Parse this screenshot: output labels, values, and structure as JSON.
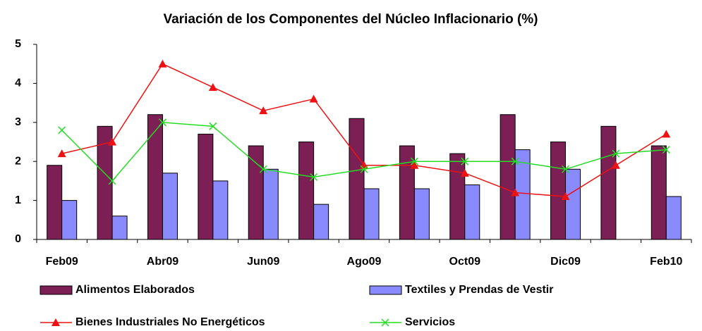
{
  "chart_data": {
    "type": "bar_line",
    "title": "Variación de los Componentes del Núcleo Inflacionario (%)",
    "categories": [
      "Feb09",
      null,
      "Abr09",
      null,
      "Jun09",
      null,
      "Ago09",
      null,
      "Oct09",
      null,
      "Dic09",
      null,
      "Feb10"
    ],
    "series": [
      {
        "name": "Alimentos Elaborados",
        "type": "bar",
        "color": "#7b1f54",
        "values": [
          1.9,
          2.9,
          3.2,
          2.7,
          2.4,
          2.5,
          3.1,
          2.4,
          2.2,
          3.2,
          2.5,
          2.9,
          2.4
        ]
      },
      {
        "name": "Textiles y Prendas de Vestir",
        "type": "bar",
        "color": "#8a8aff",
        "values": [
          1.0,
          0.6,
          1.7,
          1.5,
          1.8,
          0.9,
          1.3,
          1.3,
          1.4,
          2.3,
          1.8,
          null,
          1.1
        ]
      },
      {
        "name": "Bienes Industriales No Energéticos",
        "type": "line",
        "marker": "triangle",
        "color": "#ee1111",
        "values": [
          2.2,
          2.5,
          4.5,
          3.9,
          3.3,
          3.6,
          1.9,
          1.9,
          1.7,
          1.2,
          1.1,
          1.9,
          2.7
        ]
      },
      {
        "name": "Servicios",
        "type": "line",
        "marker": "x",
        "color": "#22dd22",
        "values": [
          2.8,
          1.5,
          3.0,
          2.9,
          1.8,
          1.6,
          1.8,
          2.0,
          2.0,
          2.0,
          1.8,
          2.2,
          2.3
        ]
      }
    ],
    "ylim": [
      0,
      5
    ],
    "yticks": [
      0,
      1,
      2,
      3,
      4,
      5
    ],
    "grid": false
  }
}
